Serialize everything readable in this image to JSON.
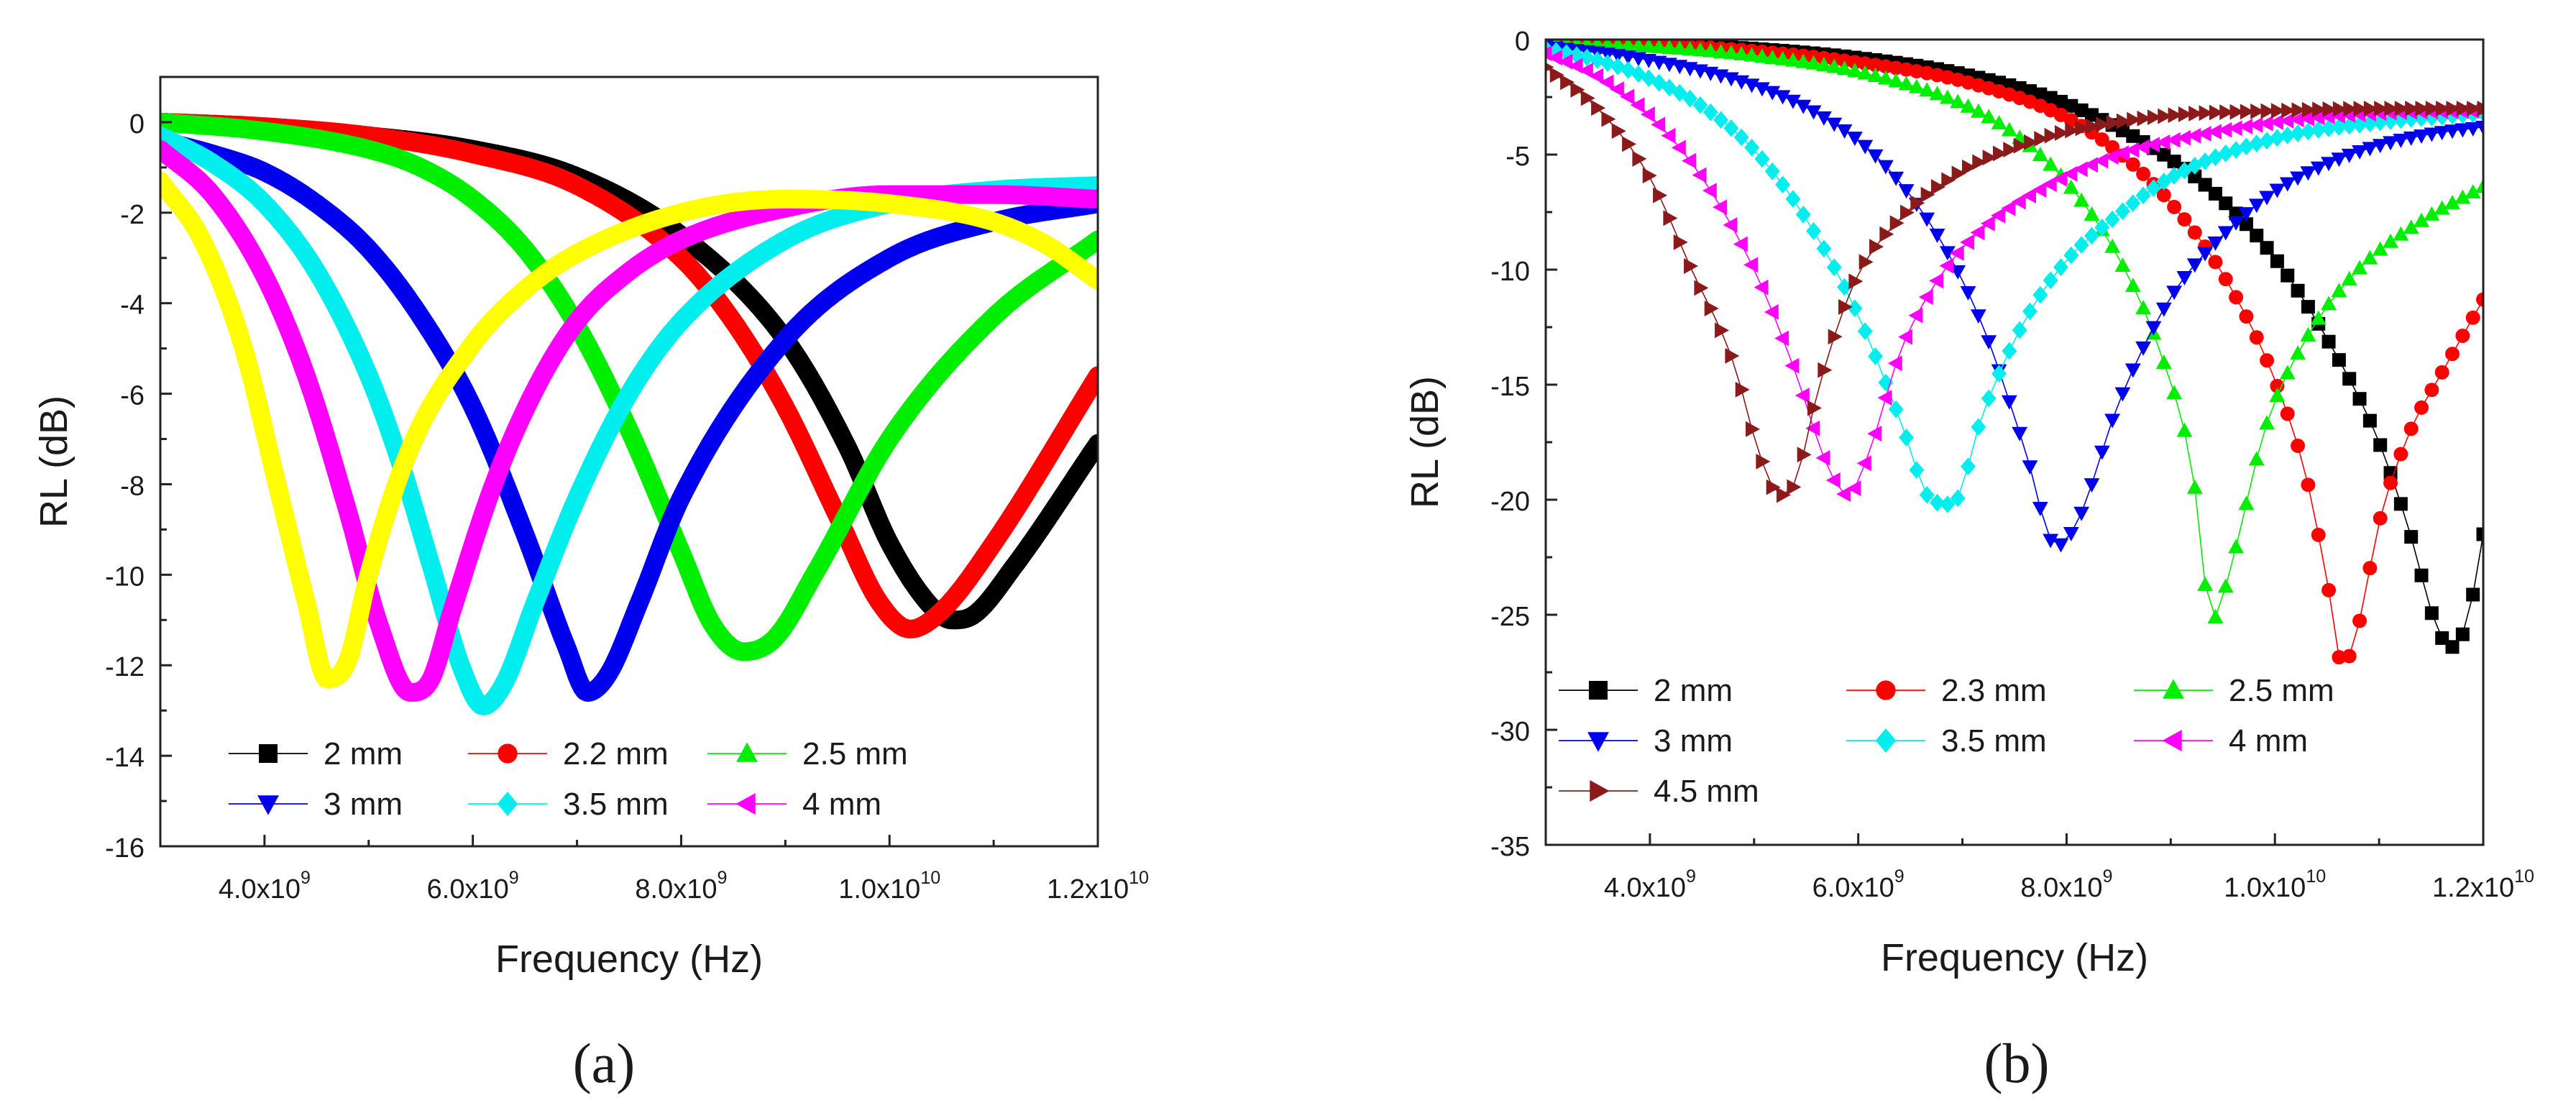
{
  "panel_labels": [
    "(a)",
    "(b)"
  ],
  "chart_data": [
    {
      "type": "scatter",
      "panel": "(a)",
      "xlabel": "Frequency (Hz)",
      "ylabel": "RL (dB)",
      "xlim": [
        3000000000,
        12000000000
      ],
      "ylim": [
        -16,
        1
      ],
      "x_ticks": [
        4000000000,
        6000000000,
        8000000000,
        10000000000,
        12000000000
      ],
      "x_tick_labels": [
        {
          "mantissa": "4.0x10",
          "exponent": "9"
        },
        {
          "mantissa": "6.0x10",
          "exponent": "9"
        },
        {
          "mantissa": "8.0x10",
          "exponent": "9"
        },
        {
          "mantissa": "1.0x10",
          "exponent": "10"
        },
        {
          "mantissa": "1.2x10",
          "exponent": "10"
        }
      ],
      "y_ticks": [
        0,
        -2,
        -4,
        -6,
        -8,
        -10,
        -12,
        -14,
        -16
      ],
      "y_tick_labels": [
        "0",
        "-2",
        "-4",
        "-6",
        "-8",
        "-10",
        "-12",
        "-14",
        "-16"
      ],
      "grid": false,
      "legend_position": "bottom-center",
      "legend_columns": 3,
      "series": [
        {
          "name": "2 mm",
          "color": "#000000",
          "marker": "square",
          "x": [
            3000000000.0,
            4000000000.0,
            5000000000.0,
            6000000000.0,
            7000000000.0,
            8000000000.0,
            9000000000.0,
            9600000000.0,
            10000000000.0,
            10400000000.0,
            10600000000.0,
            10800000000.0,
            11200000000.0,
            12000000000.0
          ],
          "y": [
            0,
            -0.1,
            -0.3,
            -0.6,
            -1.2,
            -2.5,
            -4.8,
            -7.2,
            -9.3,
            -10.7,
            -11.0,
            -10.9,
            -9.8,
            -7.1
          ]
        },
        {
          "name": "2.2 mm",
          "color": "#ff0000",
          "marker": "circle",
          "x": [
            3000000000.0,
            4000000000.0,
            5000000000.0,
            6000000000.0,
            7000000000.0,
            8000000000.0,
            8500000000.0,
            9000000000.0,
            9500000000.0,
            9900000000.0,
            10200000000.0,
            10500000000.0,
            11000000000.0,
            12000000000.0
          ],
          "y": [
            0,
            -0.1,
            -0.3,
            -0.7,
            -1.4,
            -3.0,
            -4.4,
            -6.3,
            -8.7,
            -10.6,
            -11.2,
            -10.8,
            -9.3,
            -5.6
          ]
        },
        {
          "name": "2.5 mm",
          "color": "#00ee00",
          "marker": "triangle-up",
          "x": [
            3000000000.0,
            4000000000.0,
            5000000000.0,
            5500000000.0,
            6000000000.0,
            6500000000.0,
            7000000000.0,
            7500000000.0,
            8000000000.0,
            8300000000.0,
            8600000000.0,
            8900000000.0,
            9300000000.0,
            10000000000.0,
            11000000000.0,
            12000000000.0
          ],
          "y": [
            0,
            -0.2,
            -0.6,
            -1.0,
            -1.7,
            -2.8,
            -4.5,
            -6.8,
            -9.5,
            -11.1,
            -11.7,
            -11.4,
            -9.9,
            -7.0,
            -4.3,
            -2.6
          ]
        },
        {
          "name": "3 mm",
          "color": "#0000ee",
          "marker": "triangle-down",
          "x": [
            3000000000.0,
            3500000000.0,
            4000000000.0,
            4500000000.0,
            5000000000.0,
            5500000000.0,
            6000000000.0,
            6500000000.0,
            6900000000.0,
            7100000000.0,
            7300000000.0,
            7600000000.0,
            8000000000.0,
            9000000000.0,
            10000000000.0,
            11000000000.0,
            12000000000.0
          ],
          "y": [
            -0.4,
            -0.7,
            -1.1,
            -1.8,
            -2.8,
            -4.3,
            -6.3,
            -9.1,
            -11.6,
            -12.6,
            -12.2,
            -10.6,
            -8.3,
            -4.8,
            -3.0,
            -2.2,
            -1.8
          ]
        },
        {
          "name": "3.5 mm",
          "color": "#00eeee",
          "marker": "diamond",
          "x": [
            3000000000.0,
            3500000000.0,
            4000000000.0,
            4500000000.0,
            5000000000.0,
            5300000000.0,
            5600000000.0,
            5900000000.0,
            6100000000.0,
            6300000000.0,
            6600000000.0,
            7000000000.0,
            7500000000.0,
            8000000000.0,
            9000000000.0,
            10000000000.0,
            11000000000.0,
            12000000000.0
          ],
          "y": [
            -0.3,
            -0.9,
            -1.8,
            -3.3,
            -5.6,
            -7.5,
            -9.8,
            -12.1,
            -12.9,
            -12.4,
            -10.6,
            -8.3,
            -6.0,
            -4.4,
            -2.6,
            -1.8,
            -1.5,
            -1.4
          ]
        },
        {
          "name": "4 mm",
          "color": "#ff00ff",
          "marker": "triangle-left",
          "x": [
            3000000000.0,
            3500000000.0,
            4000000000.0,
            4400000000.0,
            4800000000.0,
            5100000000.0,
            5400000000.0,
            5600000000.0,
            5800000000.0,
            6200000000.0,
            6600000000.0,
            7000000000.0,
            7500000000.0,
            8000000000.0,
            9000000000.0,
            10000000000.0,
            11000000000.0,
            12000000000.0
          ],
          "y": [
            -0.6,
            -1.6,
            -3.4,
            -5.6,
            -8.6,
            -11.1,
            -12.6,
            -12.3,
            -10.8,
            -8.0,
            -5.9,
            -4.4,
            -3.3,
            -2.6,
            -1.9,
            -1.6,
            -1.6,
            -1.7
          ]
        },
        {
          "name": "",
          "color": "#ffff00",
          "marker": "none",
          "x": [
            3000000000.0,
            3400000000.0,
            3800000000.0,
            4100000000.0,
            4400000000.0,
            4600000000.0,
            4800000000.0,
            5000000000.0,
            5400000000.0,
            6000000000.0,
            6500000000.0,
            7000000000.0,
            8000000000.0,
            9000000000.0,
            10000000000.0,
            11000000000.0,
            11500000000.0,
            12000000000.0
          ],
          "y": [
            -1.3,
            -2.6,
            -5.0,
            -7.8,
            -10.6,
            -12.3,
            -11.9,
            -10.0,
            -7.2,
            -4.9,
            -3.7,
            -2.9,
            -2.0,
            -1.7,
            -1.8,
            -2.2,
            -2.7,
            -3.5
          ]
        }
      ]
    },
    {
      "type": "scatter",
      "panel": "(b)",
      "xlabel": "Frequency (Hz)",
      "ylabel": "RL (dB)",
      "xlim": [
        3000000000,
        12000000000
      ],
      "ylim": [
        -35,
        0
      ],
      "x_ticks": [
        4000000000,
        6000000000,
        8000000000,
        10000000000,
        12000000000
      ],
      "x_tick_labels": [
        {
          "mantissa": "4.0x10",
          "exponent": "9"
        },
        {
          "mantissa": "6.0x10",
          "exponent": "9"
        },
        {
          "mantissa": "8.0x10",
          "exponent": "9"
        },
        {
          "mantissa": "1.0x10",
          "exponent": "10"
        },
        {
          "mantissa": "1.2x10",
          "exponent": "10"
        }
      ],
      "y_ticks": [
        0,
        -5,
        -10,
        -15,
        -20,
        -25,
        -30,
        -35
      ],
      "y_tick_labels": [
        "0",
        "-5",
        "-10",
        "-15",
        "-20",
        "-25",
        "-30",
        "-35"
      ],
      "grid": false,
      "legend_position": "bottom-left",
      "legend_columns": 3,
      "series": [
        {
          "name": "2 mm",
          "color": "#000000",
          "marker": "square",
          "x": [
            3000000000.0,
            4000000000.0,
            5000000000.0,
            6000000000.0,
            7000000000.0,
            8000000000.0,
            9000000000.0,
            9500000000.0,
            10000000000.0,
            10500000000.0,
            11000000000.0,
            11300000000.0,
            11550000000.0,
            11700000000.0,
            11850000000.0,
            12000000000.0
          ],
          "y": [
            0,
            -0.2,
            -0.4,
            -0.8,
            -1.5,
            -2.8,
            -5.2,
            -7.0,
            -9.5,
            -13.0,
            -17.5,
            -21.5,
            -25.5,
            -26.4,
            -25.2,
            -21.5
          ]
        },
        {
          "name": "2.3 mm",
          "color": "#ff0000",
          "marker": "circle",
          "x": [
            3000000000.0,
            4000000000.0,
            5000000000.0,
            6000000000.0,
            7000000000.0,
            8000000000.0,
            8500000000.0,
            9000000000.0,
            9500000000.0,
            10000000000.0,
            10300000000.0,
            10500000000.0,
            10650000000.0,
            10800000000.0,
            11000000000.0,
            11300000000.0,
            11600000000.0,
            12000000000.0
          ],
          "y": [
            0,
            -0.2,
            -0.5,
            -1.0,
            -1.8,
            -3.4,
            -4.9,
            -7.1,
            -10.2,
            -14.8,
            -19.0,
            -23.5,
            -27.2,
            -25.5,
            -21.0,
            -17.0,
            -14.5,
            -11.3
          ]
        },
        {
          "name": "2.5 mm",
          "color": "#00ee00",
          "marker": "triangle-up",
          "x": [
            3000000000.0,
            4000000000.0,
            5000000000.0,
            6000000000.0,
            7000000000.0,
            7500000000.0,
            8000000000.0,
            8500000000.0,
            8900000000.0,
            9200000000.0,
            9400000000.0,
            9600000000.0,
            9900000000.0,
            10300000000.0,
            10800000000.0,
            11400000000.0,
            12000000000.0
          ],
          "y": [
            -0.1,
            -0.3,
            -0.7,
            -1.4,
            -2.8,
            -4.1,
            -6.2,
            -9.5,
            -13.6,
            -18.5,
            -25.2,
            -22.5,
            -17.0,
            -13.0,
            -10.0,
            -7.9,
            -6.4
          ]
        },
        {
          "name": "3 mm",
          "color": "#0000ee",
          "marker": "triangle-down",
          "x": [
            3000000000.0,
            4000000000.0,
            5000000000.0,
            5600000000.0,
            6200000000.0,
            6800000000.0,
            7200000000.0,
            7600000000.0,
            7900000000.0,
            8100000000.0,
            8500000000.0,
            9000000000.0,
            9500000000.0,
            10000000000.0,
            10500000000.0,
            11000000000.0,
            11500000000.0,
            12000000000.0
          ],
          "y": [
            -0.3,
            -0.9,
            -2.0,
            -3.2,
            -5.2,
            -8.8,
            -12.5,
            -17.8,
            -22.0,
            -21.0,
            -15.8,
            -11.2,
            -8.5,
            -6.6,
            -5.4,
            -4.6,
            -4.1,
            -3.8
          ]
        },
        {
          "name": "3.5 mm",
          "color": "#00eeee",
          "marker": "diamond",
          "x": [
            3000000000.0,
            3500000000.0,
            4000000000.0,
            4500000000.0,
            5000000000.0,
            5500000000.0,
            6000000000.0,
            6400000000.0,
            6700000000.0,
            6900000000.0,
            7200000000.0,
            7600000000.0,
            8000000000.0,
            8500000000.0,
            9000000000.0,
            10000000000.0,
            11000000000.0,
            12000000000.0
          ],
          "y": [
            -0.4,
            -0.9,
            -1.7,
            -2.9,
            -4.8,
            -7.8,
            -12.0,
            -16.5,
            -20.0,
            -20.2,
            -16.2,
            -12.2,
            -9.6,
            -7.6,
            -6.0,
            -4.3,
            -3.6,
            -3.2
          ]
        },
        {
          "name": "4 mm",
          "color": "#ff00ff",
          "marker": "triangle-left",
          "x": [
            3000000000.0,
            3500000000.0,
            4000000000.0,
            4500000000.0,
            5000000000.0,
            5400000000.0,
            5700000000.0,
            5900000000.0,
            6100000000.0,
            6400000000.0,
            6800000000.0,
            7200000000.0,
            7800000000.0,
            8500000000.0,
            9000000000.0,
            10000000000.0,
            11000000000.0,
            12000000000.0
          ],
          "y": [
            -0.6,
            -1.6,
            -3.3,
            -6.0,
            -10.0,
            -14.5,
            -18.5,
            -19.8,
            -18.0,
            -13.6,
            -10.2,
            -8.2,
            -6.4,
            -5.0,
            -4.4,
            -3.6,
            -3.2,
            -3.1
          ]
        },
        {
          "name": "4.5 mm",
          "color": "#8b1a1a",
          "marker": "triangle-right",
          "x": [
            3000000000.0,
            3500000000.0,
            4000000000.0,
            4400000000.0,
            4800000000.0,
            5050000000.0,
            5250000000.0,
            5400000000.0,
            5600000000.0,
            5800000000.0,
            6000000000.0,
            6400000000.0,
            7000000000.0,
            7500000000.0,
            8000000000.0,
            9000000000.0,
            10000000000.0,
            11000000000.0,
            12000000000.0
          ],
          "y": [
            -1.2,
            -3.0,
            -6.0,
            -10.0,
            -14.0,
            -18.0,
            -19.8,
            -19.2,
            -15.5,
            -12.5,
            -10.2,
            -7.8,
            -5.7,
            -4.7,
            -4.0,
            -3.3,
            -3.1,
            -3.0,
            -3.0
          ]
        }
      ]
    }
  ]
}
